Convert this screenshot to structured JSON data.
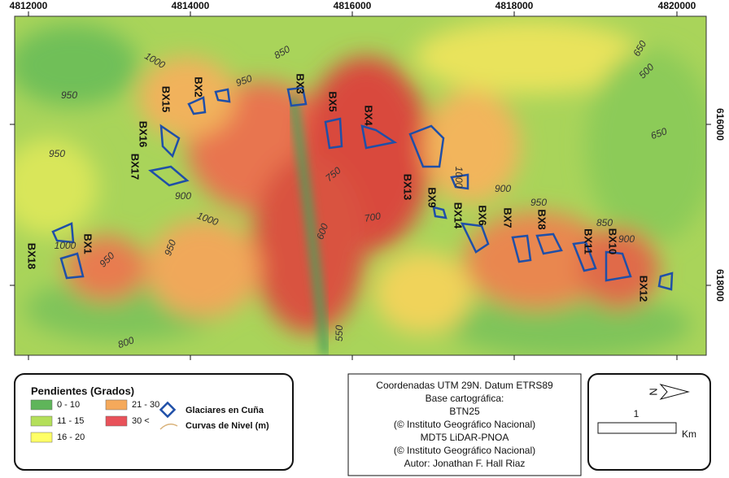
{
  "map": {
    "axes": {
      "top": [
        "4812000",
        "4814000",
        "4816000",
        "4818000",
        "4820000"
      ],
      "right": [
        "616000",
        "618000"
      ]
    },
    "glaciers": [
      "BX18",
      "BX1",
      "BX15",
      "BX2",
      "BX16",
      "BX17",
      "BX3",
      "BX5",
      "BX4",
      "BX13",
      "BX9",
      "BX14",
      "BX6",
      "BX7",
      "BX8",
      "BX11",
      "BX10",
      "BX12"
    ],
    "contours": [
      "1000",
      "850",
      "650",
      "500",
      "950",
      "950",
      "650",
      "950",
      "750",
      "1000",
      "900",
      "900",
      "1000",
      "700",
      "950",
      "600",
      "850",
      "900",
      "1000",
      "950",
      "950",
      "800",
      "550"
    ],
    "legend": {
      "title": "Pendientes (Grados)",
      "slope_classes": [
        "0 - 10",
        "11 - 15",
        "16 - 20",
        "21 - 30",
        "30 <"
      ],
      "glacier": "Glaciares en Cuña",
      "contour": "Curvas de Nivel (m)"
    },
    "credits": [
      "Coordenadas UTM 29N. Datum ETRS89",
      "Base cartográfica:",
      "BTN25",
      "(© Instituto Geográfico Nacional)",
      "MDT5 LiDAR-PNOA",
      "(© Instituto Geográfico Nacional)",
      "Autor: Jonathan F. Hall Riaz"
    ],
    "north": "N",
    "scale": {
      "value": "1",
      "unit": "Km"
    }
  }
}
